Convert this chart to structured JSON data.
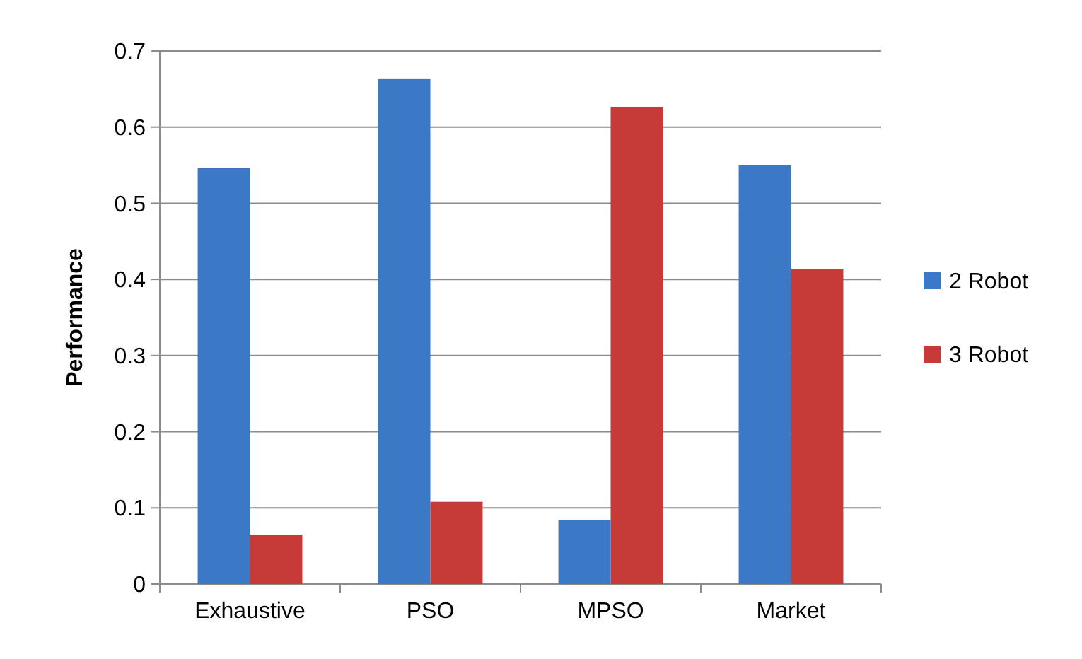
{
  "chart_data": {
    "type": "bar",
    "ylabel": "Performance",
    "categories": [
      "Exhaustive",
      "PSO",
      "MPSO",
      "Market"
    ],
    "series": [
      {
        "name": "2 Robot",
        "color": "#3b78c6",
        "values": [
          0.546,
          0.663,
          0.084,
          0.55
        ]
      },
      {
        "name": "3 Robot",
        "color": "#c63b38",
        "values": [
          0.065,
          0.108,
          0.626,
          0.414
        ]
      }
    ],
    "ylim": [
      0,
      0.7
    ],
    "yticks": [
      0,
      0.1,
      0.2,
      0.3,
      0.4,
      0.5,
      0.6,
      0.7
    ],
    "grid": "y",
    "legend": "right"
  }
}
